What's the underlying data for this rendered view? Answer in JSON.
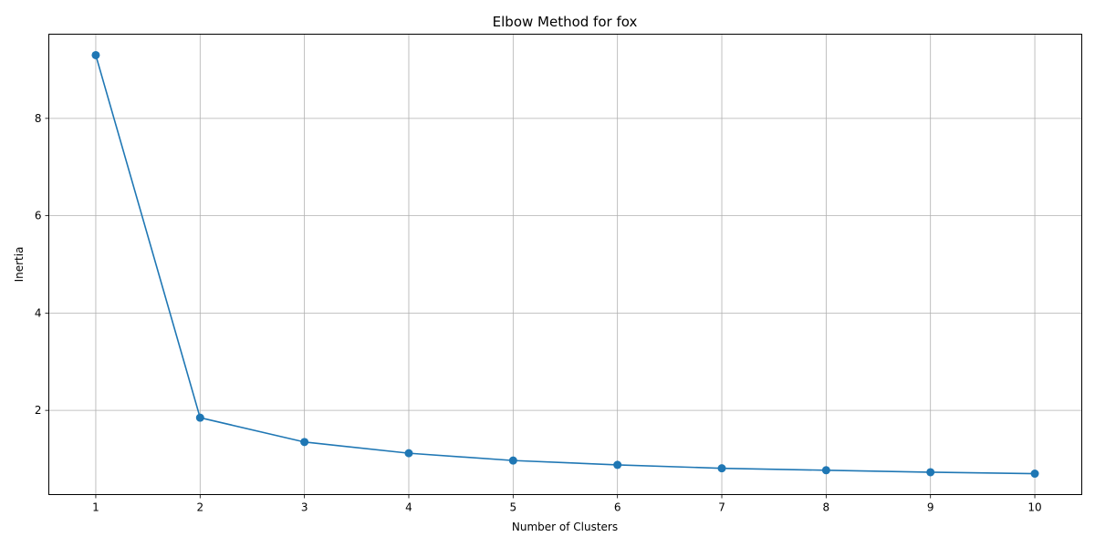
{
  "chart_data": {
    "type": "line",
    "title": "Elbow Method for fox",
    "xlabel": "Number of Clusters",
    "ylabel": "Inertia",
    "x": [
      1,
      2,
      3,
      4,
      5,
      6,
      7,
      8,
      9,
      10
    ],
    "x_ticks": [
      "1",
      "2",
      "3",
      "4",
      "5",
      "6",
      "7",
      "8",
      "9",
      "10"
    ],
    "y_ticks": [
      "2",
      "4",
      "6",
      "8"
    ],
    "series": [
      {
        "values": [
          9.3,
          1.85,
          1.35,
          1.12,
          0.97,
          0.88,
          0.81,
          0.77,
          0.73,
          0.7
        ],
        "color": "#1f77b4",
        "marker": "circle"
      }
    ],
    "xlim": [
      0.55,
      10.45
    ],
    "ylim": [
      0.27,
      9.73
    ],
    "grid": true,
    "legend": "none"
  }
}
